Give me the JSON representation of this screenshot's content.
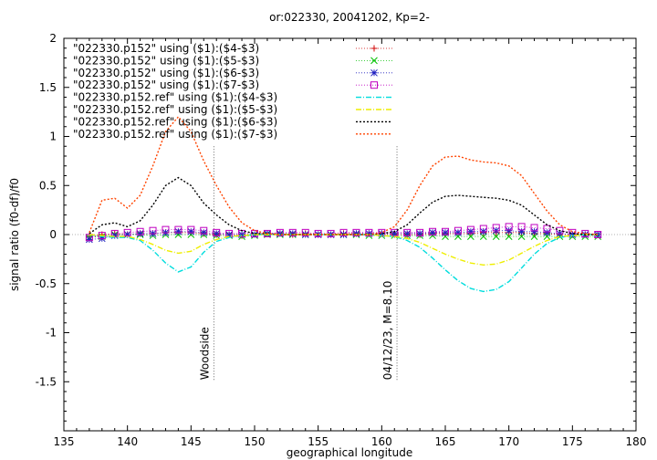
{
  "chart_data": {
    "type": "line",
    "title": "or:022330, 20041202, Kp=2-",
    "xlabel": "geographical longitude",
    "ylabel": "signal ratio (f0-df)/f0",
    "xlim": [
      135,
      180
    ],
    "ylim": [
      -2,
      2
    ],
    "xticks": [
      135,
      140,
      145,
      150,
      155,
      160,
      165,
      170,
      175,
      180
    ],
    "xtick_labels": [
      "135",
      "140",
      "145",
      "150",
      "155",
      "160",
      "165",
      "170",
      "175",
      "180"
    ],
    "yticks": [
      -1.5,
      -1,
      -0.5,
      0,
      0.5,
      1,
      1.5,
      2
    ],
    "ytick_labels": [
      "-1.5",
      "-1",
      "-0.5",
      "0",
      "0.5",
      "1",
      "1.5",
      "2"
    ],
    "legend_position": "top-left",
    "zero_line": true,
    "series": [
      {
        "name": "\"022330.p152\" using ($1):($4-$3)",
        "color": "#d00000",
        "style": "points-line",
        "marker": "plus",
        "x": [
          137,
          138,
          139,
          140,
          141,
          142,
          143,
          144,
          145,
          146,
          147,
          148,
          149,
          150,
          151,
          152,
          153,
          154,
          155,
          156,
          157,
          158,
          159,
          160,
          161,
          162,
          163,
          164,
          165,
          166,
          167,
          168,
          169,
          170,
          171,
          172,
          173,
          174,
          175,
          176,
          177
        ],
        "values": [
          -0.02,
          0.0,
          0.01,
          0.0,
          0.01,
          0.01,
          0.02,
          0.02,
          0.02,
          0.01,
          0.0,
          0.0,
          -0.01,
          0.0,
          0.01,
          0.01,
          0.0,
          0.01,
          0.0,
          0.0,
          0.01,
          0.01,
          0.01,
          0.01,
          0.0,
          0.0,
          0.0,
          0.01,
          0.01,
          0.01,
          0.01,
          0.02,
          0.02,
          0.02,
          0.02,
          0.01,
          0.01,
          0.0,
          0.0,
          0.0,
          0.0
        ]
      },
      {
        "name": "\"022330.p152\" using ($1):($5-$3)",
        "color": "#00c000",
        "style": "points-line",
        "marker": "x",
        "x": [
          137,
          138,
          139,
          140,
          141,
          142,
          143,
          144,
          145,
          146,
          147,
          148,
          149,
          150,
          151,
          152,
          153,
          154,
          155,
          156,
          157,
          158,
          159,
          160,
          161,
          162,
          163,
          164,
          165,
          166,
          167,
          168,
          169,
          170,
          171,
          172,
          173,
          174,
          175,
          176,
          177
        ],
        "values": [
          -0.03,
          -0.02,
          0.0,
          0.0,
          0.0,
          -0.01,
          0.0,
          0.0,
          0.0,
          0.0,
          -0.01,
          -0.01,
          -0.02,
          -0.01,
          0.0,
          0.0,
          0.0,
          0.0,
          0.0,
          0.0,
          0.0,
          0.0,
          -0.01,
          -0.01,
          -0.01,
          -0.01,
          -0.01,
          -0.01,
          -0.02,
          -0.02,
          -0.02,
          -0.02,
          -0.02,
          -0.02,
          -0.02,
          -0.02,
          -0.02,
          -0.02,
          -0.02,
          -0.02,
          -0.02
        ]
      },
      {
        "name": "\"022330.p152\" using ($1):($6-$3)",
        "color": "#2020c0",
        "style": "points-line",
        "marker": "star",
        "x": [
          137,
          138,
          139,
          140,
          141,
          142,
          143,
          144,
          145,
          146,
          147,
          148,
          149,
          150,
          151,
          152,
          153,
          154,
          155,
          156,
          157,
          158,
          159,
          160,
          161,
          162,
          163,
          164,
          165,
          166,
          167,
          168,
          169,
          170,
          171,
          172,
          173,
          174,
          175,
          176,
          177
        ],
        "values": [
          -0.05,
          -0.04,
          -0.01,
          0.0,
          0.01,
          0.01,
          0.02,
          0.03,
          0.03,
          0.02,
          0.01,
          0.0,
          0.0,
          0.0,
          0.01,
          0.01,
          0.01,
          0.0,
          0.0,
          0.0,
          0.0,
          0.01,
          0.01,
          0.01,
          0.01,
          0.01,
          0.01,
          0.02,
          0.02,
          0.02,
          0.03,
          0.03,
          0.04,
          0.04,
          0.03,
          0.03,
          0.02,
          0.01,
          0.0,
          0.0,
          0.0
        ]
      },
      {
        "name": "\"022330.p152\" using ($1):($7-$3)",
        "color": "#c000c0",
        "style": "points-line",
        "marker": "square",
        "x": [
          137,
          138,
          139,
          140,
          141,
          142,
          143,
          144,
          145,
          146,
          147,
          148,
          149,
          150,
          151,
          152,
          153,
          154,
          155,
          156,
          157,
          158,
          159,
          160,
          161,
          162,
          163,
          164,
          165,
          166,
          167,
          168,
          169,
          170,
          171,
          172,
          173,
          174,
          175,
          176,
          177
        ],
        "values": [
          -0.03,
          -0.01,
          0.01,
          0.02,
          0.03,
          0.04,
          0.05,
          0.05,
          0.05,
          0.04,
          0.02,
          0.01,
          0.01,
          0.01,
          0.01,
          0.02,
          0.02,
          0.02,
          0.01,
          0.01,
          0.02,
          0.02,
          0.02,
          0.02,
          0.02,
          0.02,
          0.02,
          0.03,
          0.03,
          0.04,
          0.05,
          0.06,
          0.07,
          0.08,
          0.08,
          0.07,
          0.06,
          0.04,
          0.02,
          0.01,
          0.0
        ]
      },
      {
        "name": "\"022330.p152.ref\" using ($1):($4-$3)",
        "color": "#00dddd",
        "style": "dash-dot",
        "x": [
          137,
          138,
          139,
          140,
          141,
          142,
          143,
          144,
          145,
          146,
          147,
          148,
          149,
          150,
          151,
          152,
          153,
          154,
          155,
          156,
          157,
          158,
          159,
          160,
          161,
          162,
          163,
          164,
          165,
          166,
          167,
          168,
          169,
          170,
          171,
          172,
          173,
          174,
          175,
          176,
          177
        ],
        "values": [
          0.0,
          -0.02,
          -0.03,
          -0.03,
          -0.06,
          -0.16,
          -0.29,
          -0.38,
          -0.33,
          -0.18,
          -0.07,
          -0.03,
          -0.01,
          0.0,
          0.0,
          0.0,
          0.0,
          0.0,
          0.0,
          0.0,
          0.0,
          0.0,
          0.0,
          -0.01,
          -0.02,
          -0.06,
          -0.13,
          -0.24,
          -0.36,
          -0.47,
          -0.55,
          -0.58,
          -0.56,
          -0.48,
          -0.34,
          -0.2,
          -0.09,
          -0.03,
          -0.01,
          0.0,
          0.0
        ]
      },
      {
        "name": "\"022330.p152.ref\" using ($1):($5-$3)",
        "color": "#eeee00",
        "style": "dash-dot",
        "x": [
          137,
          138,
          139,
          140,
          141,
          142,
          143,
          144,
          145,
          146,
          147,
          148,
          149,
          150,
          151,
          152,
          153,
          154,
          155,
          156,
          157,
          158,
          159,
          160,
          161,
          162,
          163,
          164,
          165,
          166,
          167,
          168,
          169,
          170,
          171,
          172,
          173,
          174,
          175,
          176,
          177
        ],
        "values": [
          0.0,
          -0.01,
          -0.02,
          -0.02,
          -0.05,
          -0.1,
          -0.16,
          -0.19,
          -0.17,
          -0.1,
          -0.05,
          -0.02,
          -0.01,
          0.0,
          0.0,
          0.0,
          0.0,
          0.0,
          0.0,
          0.0,
          0.0,
          0.0,
          0.0,
          -0.01,
          -0.02,
          -0.04,
          -0.08,
          -0.14,
          -0.2,
          -0.25,
          -0.29,
          -0.31,
          -0.3,
          -0.26,
          -0.19,
          -0.12,
          -0.06,
          -0.02,
          -0.01,
          0.0,
          0.0
        ]
      },
      {
        "name": "\"022330.p152.ref\" using ($1):($6-$3)",
        "color": "#000000",
        "style": "dotted",
        "x": [
          137,
          138,
          139,
          140,
          141,
          142,
          143,
          144,
          145,
          146,
          147,
          148,
          149,
          150,
          151,
          152,
          153,
          154,
          155,
          156,
          157,
          158,
          159,
          160,
          161,
          162,
          163,
          164,
          165,
          166,
          167,
          168,
          169,
          170,
          171,
          172,
          173,
          174,
          175,
          176,
          177
        ],
        "values": [
          0.01,
          0.1,
          0.12,
          0.08,
          0.14,
          0.3,
          0.5,
          0.58,
          0.5,
          0.32,
          0.2,
          0.1,
          0.04,
          0.01,
          0.01,
          0.0,
          0.0,
          0.0,
          0.0,
          0.0,
          0.0,
          0.0,
          0.0,
          0.01,
          0.03,
          0.1,
          0.22,
          0.33,
          0.39,
          0.4,
          0.39,
          0.38,
          0.37,
          0.35,
          0.3,
          0.2,
          0.1,
          0.04,
          0.01,
          0.0,
          0.0
        ]
      },
      {
        "name": "\"022330.p152.ref\" using ($1):($7-$3)",
        "color": "#ff4400",
        "style": "dotted",
        "x": [
          137,
          138,
          139,
          140,
          141,
          142,
          143,
          144,
          145,
          146,
          147,
          148,
          149,
          150,
          151,
          152,
          153,
          154,
          155,
          156,
          157,
          158,
          159,
          160,
          161,
          162,
          163,
          164,
          165,
          166,
          167,
          168,
          169,
          170,
          171,
          172,
          173,
          174,
          175,
          176,
          177
        ],
        "values": [
          0.02,
          0.35,
          0.37,
          0.27,
          0.4,
          0.7,
          1.05,
          1.2,
          1.05,
          0.75,
          0.5,
          0.28,
          0.12,
          0.04,
          0.01,
          0.0,
          0.0,
          0.0,
          0.0,
          0.0,
          0.0,
          0.0,
          0.0,
          0.02,
          0.08,
          0.25,
          0.5,
          0.7,
          0.79,
          0.8,
          0.76,
          0.74,
          0.73,
          0.7,
          0.6,
          0.42,
          0.24,
          0.1,
          0.03,
          0.01,
          0.0
        ]
      }
    ],
    "annotations": [
      {
        "text": "Woodside",
        "x": 146.8,
        "y_from": -1.5,
        "y_to": 0.9
      },
      {
        "text": "04/12/23, M=8.10",
        "x": 161.2,
        "y_from": -1.5,
        "y_to": 0.9
      }
    ]
  }
}
